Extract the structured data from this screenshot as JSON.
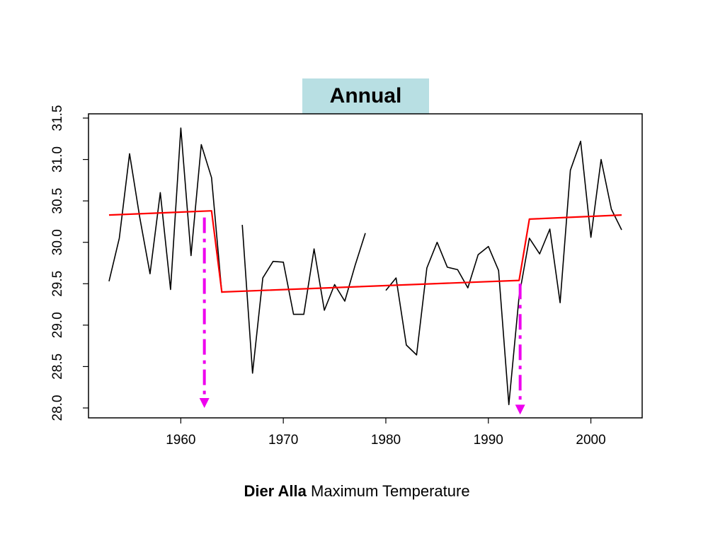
{
  "caption": {
    "bold": "Dier Alla",
    "rest": " Maximum Temperature"
  },
  "chart_data": {
    "type": "line",
    "title": "Annual",
    "xlabel": "",
    "ylabel": "",
    "xlim": [
      1952,
      2004
    ],
    "ylim": [
      28.0,
      31.5
    ],
    "xticks": [
      1960,
      1970,
      1980,
      1990,
      2000
    ],
    "yticks": [
      28.0,
      28.5,
      29.0,
      29.5,
      30.0,
      30.5,
      31.0,
      31.5
    ],
    "ytick_labels": [
      "28.0",
      "28.5",
      "29.0",
      "29.5",
      "30.0",
      "30.5",
      "31.0",
      "31.5"
    ],
    "grid": false,
    "series": [
      {
        "type": "line",
        "color": "#000000",
        "segments": [
          {
            "x": [
              1953,
              1954,
              1955,
              1956,
              1957,
              1958,
              1959,
              1960,
              1961,
              1962,
              1963,
              1964,
              1965,
              1966,
              1967,
              1968,
              1969,
              1970,
              1971,
              1972,
              1973,
              1974,
              1975,
              1976,
              1977,
              1978
            ],
            "y": [
              29.53,
              30.05,
              31.07,
              30.3,
              29.62,
              30.6,
              29.43,
              31.38,
              29.84,
              31.18,
              30.78,
              29.39,
              null,
              30.21,
              28.42,
              29.57,
              29.77,
              29.76,
              29.13,
              29.13,
              29.92,
              29.18,
              29.49,
              29.29,
              29.72,
              30.11
            ]
          },
          {
            "x": [
              1980,
              1981,
              1982,
              1983,
              1984,
              1985,
              1986,
              1987,
              1988,
              1989,
              1990,
              1991,
              1992,
              1993,
              1994,
              1995,
              1996,
              1997,
              1998,
              1999,
              2000,
              2001,
              2002,
              2003
            ],
            "y": [
              29.42,
              29.57,
              28.76,
              28.64,
              29.69,
              30.0,
              29.7,
              29.67,
              29.45,
              29.85,
              29.95,
              29.66,
              28.04,
              29.35,
              30.05,
              29.86,
              30.16,
              29.27,
              30.87,
              31.22,
              30.06,
              31.0,
              30.4,
              30.15
            ]
          }
        ]
      },
      {
        "type": "line",
        "color": "#ff0000",
        "x": [
          1953,
          1963,
          1964,
          1993,
          1994,
          2003
        ],
        "y": [
          30.33,
          30.38,
          29.4,
          29.54,
          30.28,
          30.33
        ]
      }
    ],
    "annotations": [
      {
        "type": "change-point-arrow",
        "x": 1962.3,
        "y_from": 30.3,
        "y_to": 28.0,
        "color": "#ee00ee"
      },
      {
        "type": "change-point-arrow",
        "x": 1993.1,
        "y_from": 29.5,
        "y_to": 27.92,
        "color": "#ee00ee"
      }
    ]
  }
}
